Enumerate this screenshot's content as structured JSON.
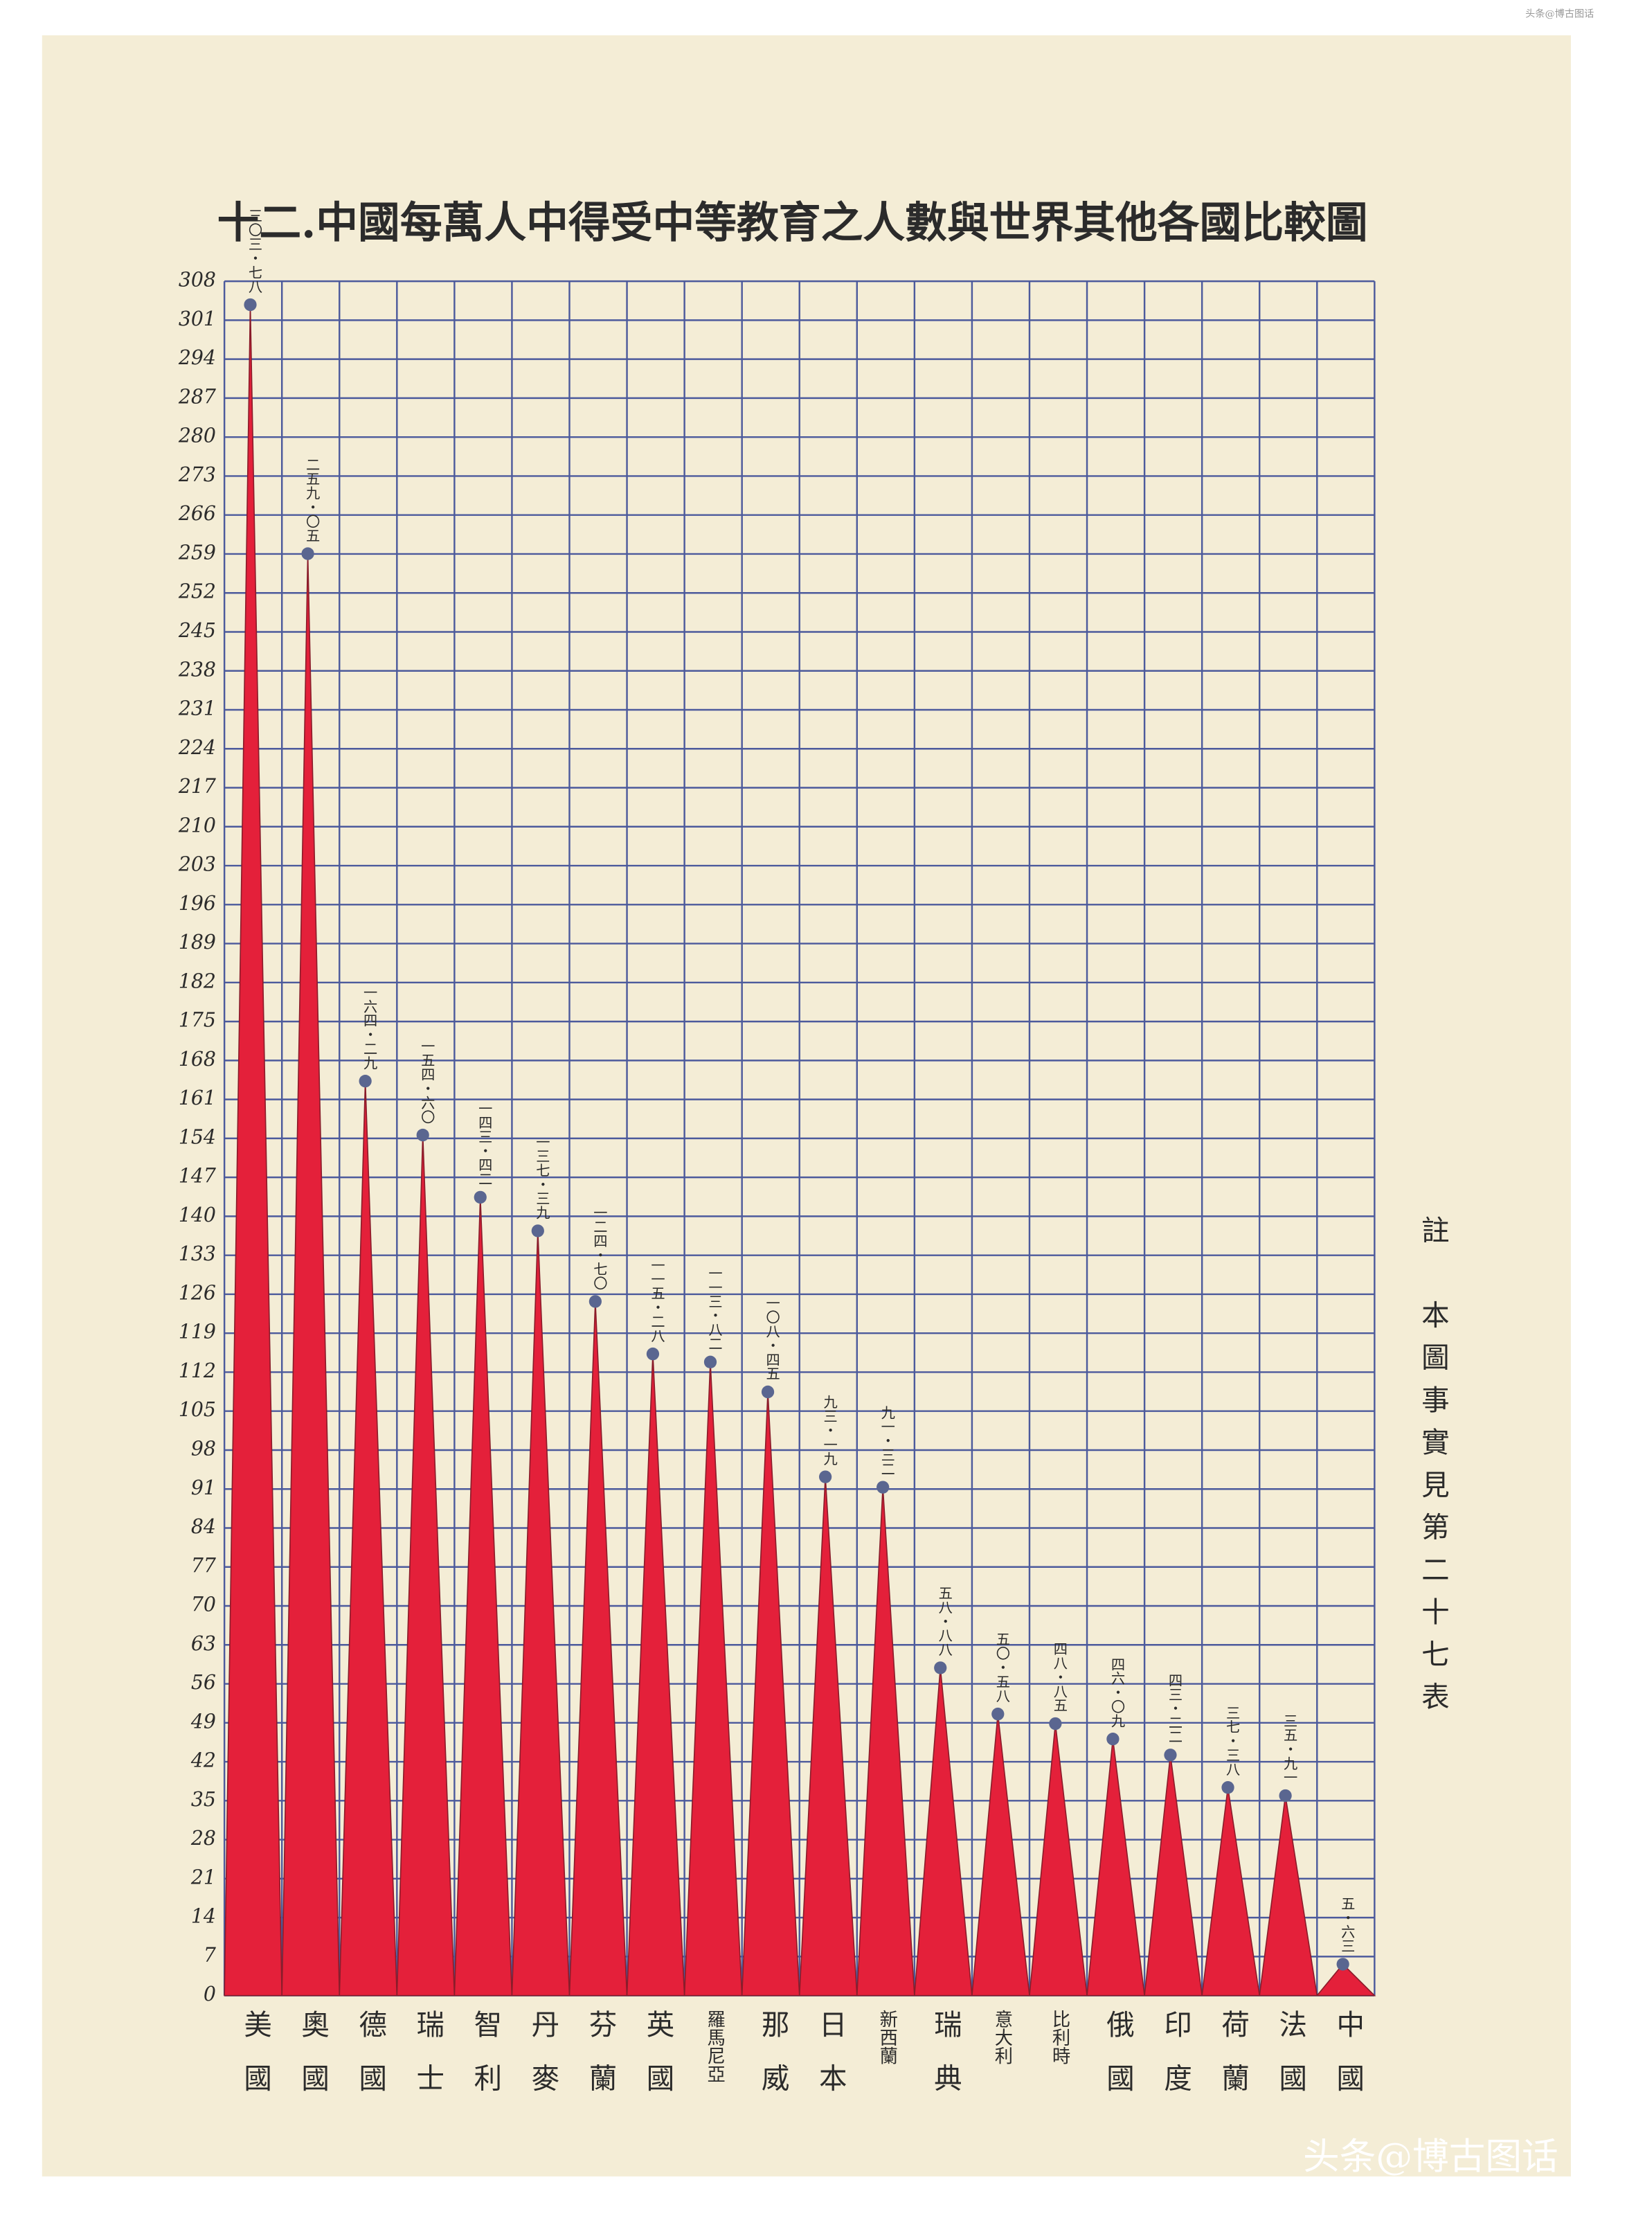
{
  "chart_data": {
    "type": "area_spike",
    "title": "十二.中國每萬人中得受中等教育之人數與世界其他各國比較圖",
    "note": "註　本圖事實見第二十七表",
    "watermark": "头条@博古图话",
    "categories": [
      "美國",
      "奧國",
      "德國",
      "瑞士",
      "智利",
      "丹麥",
      "芬蘭",
      "英國",
      "羅馬尼亞",
      "那威",
      "日本",
      "新西蘭",
      "瑞典",
      "意大利",
      "比利時",
      "俄國",
      "印度",
      "荷蘭",
      "法國",
      "中國"
    ],
    "values": [
      303.78,
      259.05,
      164.29,
      154.6,
      143.42,
      137.39,
      124.7,
      115.28,
      113.82,
      108.45,
      93.19,
      91.32,
      58.88,
      50.58,
      48.85,
      46.09,
      43.22,
      37.38,
      35.91,
      5.63
    ],
    "value_labels": [
      "三〇三・七八",
      "二五九・〇五",
      "一六四・二九",
      "一五四・六〇",
      "一四三・四二",
      "一三七・三九",
      "一二四・七〇",
      "一一五・二八",
      "一一三・八二",
      "一〇八・四五",
      "九三・一九",
      "九一・三二",
      "五八・八八",
      "五〇・五八",
      "四八・八五",
      "四六・〇九",
      "四三・二二",
      "三七・三八",
      "三五・九一",
      "五・六三"
    ],
    "color": "#e4203a",
    "ylim": [
      0,
      308
    ],
    "yticks": [
      0,
      7,
      14,
      21,
      28,
      35,
      42,
      49,
      56,
      63,
      70,
      77,
      84,
      91,
      98,
      105,
      112,
      119,
      126,
      133,
      140,
      147,
      154,
      161,
      168,
      175,
      182,
      189,
      196,
      203,
      210,
      217,
      224,
      231,
      238,
      245,
      252,
      259,
      266,
      273,
      280,
      287,
      294,
      301,
      308
    ],
    "grid": true
  }
}
